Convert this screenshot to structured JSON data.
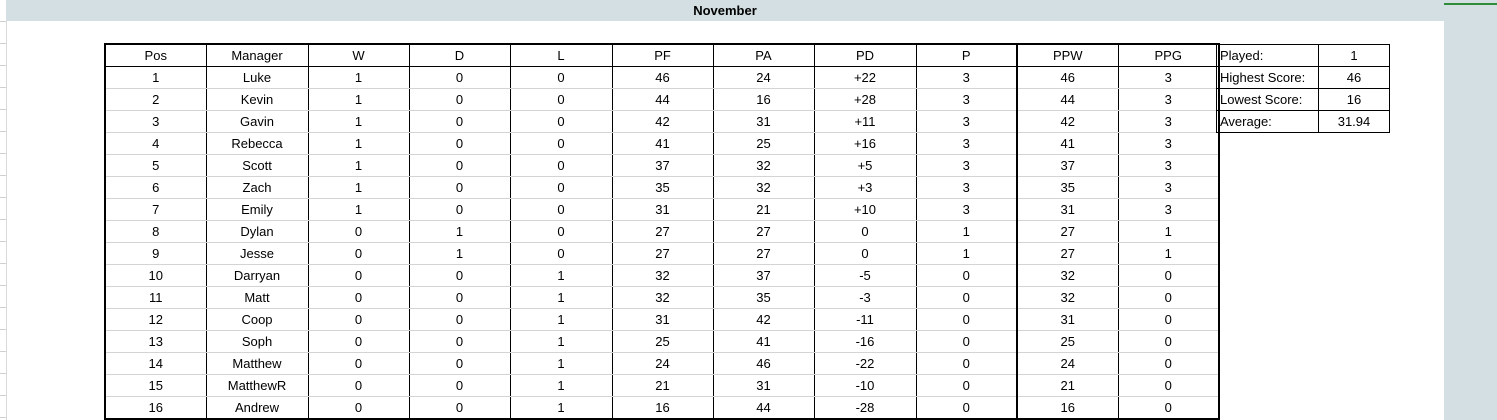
{
  "sheet": {
    "title": "November"
  },
  "standings": {
    "columns": [
      "Pos",
      "Manager",
      "W",
      "D",
      "L",
      "PF",
      "PA",
      "PD",
      "P",
      "PPW",
      "PPG"
    ],
    "rows": [
      [
        "1",
        "Luke",
        "1",
        "0",
        "0",
        "46",
        "24",
        "+22",
        "3",
        "46",
        "3"
      ],
      [
        "2",
        "Kevin",
        "1",
        "0",
        "0",
        "44",
        "16",
        "+28",
        "3",
        "44",
        "3"
      ],
      [
        "3",
        "Gavin",
        "1",
        "0",
        "0",
        "42",
        "31",
        "+11",
        "3",
        "42",
        "3"
      ],
      [
        "4",
        "Rebecca",
        "1",
        "0",
        "0",
        "41",
        "25",
        "+16",
        "3",
        "41",
        "3"
      ],
      [
        "5",
        "Scott",
        "1",
        "0",
        "0",
        "37",
        "32",
        "+5",
        "3",
        "37",
        "3"
      ],
      [
        "6",
        "Zach",
        "1",
        "0",
        "0",
        "35",
        "32",
        "+3",
        "3",
        "35",
        "3"
      ],
      [
        "7",
        "Emily",
        "1",
        "0",
        "0",
        "31",
        "21",
        "+10",
        "3",
        "31",
        "3"
      ],
      [
        "8",
        "Dylan",
        "0",
        "1",
        "0",
        "27",
        "27",
        "0",
        "1",
        "27",
        "1"
      ],
      [
        "9",
        "Jesse",
        "0",
        "1",
        "0",
        "27",
        "27",
        "0",
        "1",
        "27",
        "1"
      ],
      [
        "10",
        "Darryan",
        "0",
        "0",
        "1",
        "32",
        "37",
        "-5",
        "0",
        "32",
        "0"
      ],
      [
        "11",
        "Matt",
        "0",
        "0",
        "1",
        "32",
        "35",
        "-3",
        "0",
        "32",
        "0"
      ],
      [
        "12",
        "Coop",
        "0",
        "0",
        "1",
        "31",
        "42",
        "-11",
        "0",
        "31",
        "0"
      ],
      [
        "13",
        "Soph",
        "0",
        "0",
        "1",
        "25",
        "41",
        "-16",
        "0",
        "25",
        "0"
      ],
      [
        "14",
        "Matthew",
        "0",
        "0",
        "1",
        "24",
        "46",
        "-22",
        "0",
        "24",
        "0"
      ],
      [
        "15",
        "MatthewR",
        "0",
        "0",
        "1",
        "21",
        "31",
        "-10",
        "0",
        "21",
        "0"
      ],
      [
        "16",
        "Andrew",
        "0",
        "0",
        "1",
        "16",
        "44",
        "-28",
        "0",
        "16",
        "0"
      ]
    ]
  },
  "stats": [
    {
      "label": "Played:",
      "value": "1"
    },
    {
      "label": "Highest Score:",
      "value": "46"
    },
    {
      "label": "Lowest Score:",
      "value": "16"
    },
    {
      "label": "Average:",
      "value": "31.94"
    }
  ],
  "colors": {
    "header_band": "#d3dfe2",
    "border": "#000000",
    "row_divider": "#d4d4d4",
    "accent_line": "#2e8b3a"
  }
}
